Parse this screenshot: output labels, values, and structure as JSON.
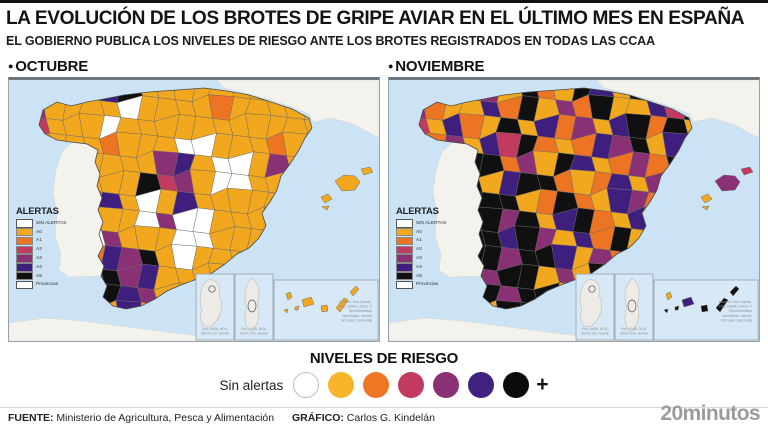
{
  "header": {
    "title": "LA EVOLUCIÓN DE LOS BROTES DE GRIPE AVIAR EN EL ÚLTIMO MES EN ESPAÑA",
    "subtitle": "EL GOBIERNO PUBLICA LOS NIVELES DE RIESGO ANTE LOS BROTES REGISTRADOS EN TODAS LAS CCAA"
  },
  "palette": {
    "W": "#FFFFFF",
    "0": "#F2A81E",
    "1": "#ED7423",
    "2": "#C23A5F",
    "3": "#8A3074",
    "4": "#3F1F7D",
    "5": "#101010"
  },
  "maps": [
    {
      "id": "october",
      "bullet": "●",
      "label": "OCTUBRE",
      "grid": [
        "00000450000000000000",
        "030000W0000100000000",
        "02000W00000000000000",
        "000001000WW000100000",
        "00000000340WW0300000",
        "00000005230WW0000000",
        "0000140W040000000000",
        "0000100W3WW000000000",
        "0000W3000WW000000000",
        "000014350W0000000000",
        "00003534000000000000",
        "00000543000000000000",
        "00000040000000000000",
        "00000000000000000000"
      ],
      "balearic_colors": [
        "0",
        "0",
        "0",
        "0"
      ],
      "canary_colors": [
        "0",
        "0",
        "0",
        "0",
        "0",
        "0",
        "0"
      ]
    },
    {
      "id": "november",
      "bullet": "●",
      "label": "NOVIEMBRE",
      "grid": [
        "00105305105405000000",
        "03100415031500425000",
        "02041050413045150000",
        "00130425101435040000",
        "00405513054013150000",
        "00355045510140310000",
        "00535550151043140000",
        "00055535045104310000",
        "00035545304150140000",
        "00015535540310400000",
        "00005355030540000000",
        "00000535500000000000",
        "00000055000000000000",
        "00000000000000000000"
      ],
      "balearic_colors": [
        "3",
        "2",
        "0",
        "0"
      ],
      "canary_colors": [
        "0",
        "5",
        "5",
        "4",
        "5",
        "5",
        "5"
      ]
    }
  ],
  "map_legend": {
    "title": "ALERTAS",
    "items": [
      {
        "label": "SIN ALERTAS",
        "key": "W",
        "outline": true
      },
      {
        "label": "A0",
        "key": "0"
      },
      {
        "label": "A1",
        "key": "1"
      },
      {
        "label": "A2",
        "key": "2"
      },
      {
        "label": "A3",
        "key": "3"
      },
      {
        "label": "A4",
        "key": "4"
      },
      {
        "label": "A5",
        "key": "5"
      },
      {
        "label": "Provincias",
        "key": "W",
        "outline": true
      }
    ]
  },
  "risk_legend": {
    "title": "NIVELES DE RIESGO",
    "levels": [
      {
        "label": "Sin alertas",
        "color": "#FFFFFF"
      },
      {
        "label": "A0",
        "color": "#F9B52A"
      },
      {
        "label": "A1",
        "color": "#EF7623"
      },
      {
        "label": "A2",
        "color": "#C23A5F"
      },
      {
        "label": "A3",
        "color": "#8A3074"
      },
      {
        "label": "A4",
        "color": "#41217E"
      },
      {
        "label": "A5",
        "color": "#0B0B0B"
      }
    ],
    "plus": "+"
  },
  "attribution_lines": [
    "Sources: Esri, Garmin,",
    "FAO, NOAA, USGS, ©",
    "OpenStreetMap",
    "contributors, and the",
    "GIS User Community"
  ],
  "inset_attribution": [
    "Esri, NASA, NGA,",
    "USGS, Esri, Garmin"
  ],
  "footer": {
    "source_label": "FUENTE:",
    "source_value": "Ministerio de Agricultura, Pesca y Alimentación",
    "graphic_label": "GRÁFICO:",
    "graphic_value": "Carlos G. Kindelán",
    "brand": "20minutos"
  }
}
